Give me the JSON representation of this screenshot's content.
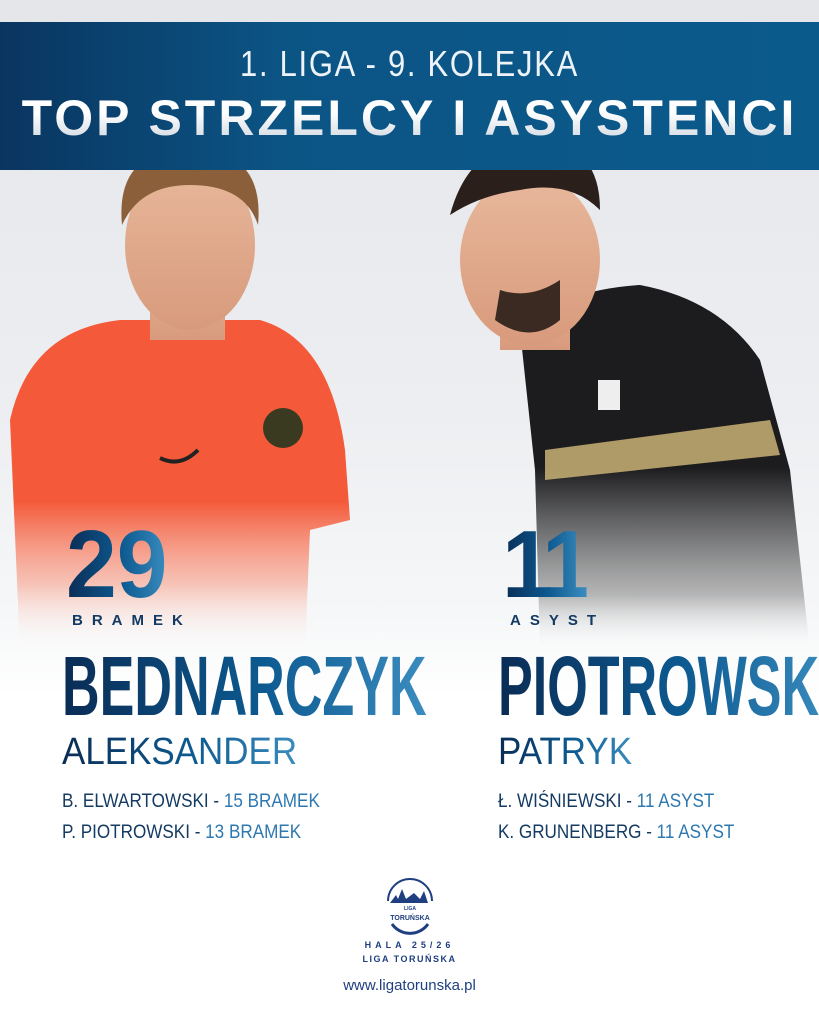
{
  "header": {
    "line1": "1. LIGA - 9. KOLEJKA",
    "line2": "TOP STRZELCY I ASYSTENCI"
  },
  "colors": {
    "header_blue": "#0b5a8c",
    "navy": "#0a2c55",
    "light_blue": "#3a8cbf",
    "shirt_orange": "#f45a3a",
    "shirt_black": "#1c1c1e",
    "shirt_gold": "#c9b274"
  },
  "scorer": {
    "value": "29",
    "unit": "BRAMEK",
    "surname": "BEDNARCZYK",
    "first_name": "ALEKSANDER",
    "runners_up": [
      {
        "name": "B. ELWARTOWSKI",
        "value": "15 BRAMEK"
      },
      {
        "name": "P. PIOTROWSKI",
        "value": "13 BRAMEK"
      }
    ]
  },
  "assister": {
    "value": "11",
    "unit": "ASYST",
    "surname": "PIOTROWSKI",
    "first_name": "PATRYK",
    "runners_up": [
      {
        "name": "Ł. WIŚNIEWSKI",
        "value": "11 ASYST"
      },
      {
        "name": "K. GRUNENBERG",
        "value": "11 ASYST"
      }
    ]
  },
  "footer": {
    "logo_text": "LIGA TORUŃSKA",
    "season": "HALA 25/26",
    "league": "LIGA TORUŃSKA",
    "url": "www.ligatorunska.pl"
  }
}
